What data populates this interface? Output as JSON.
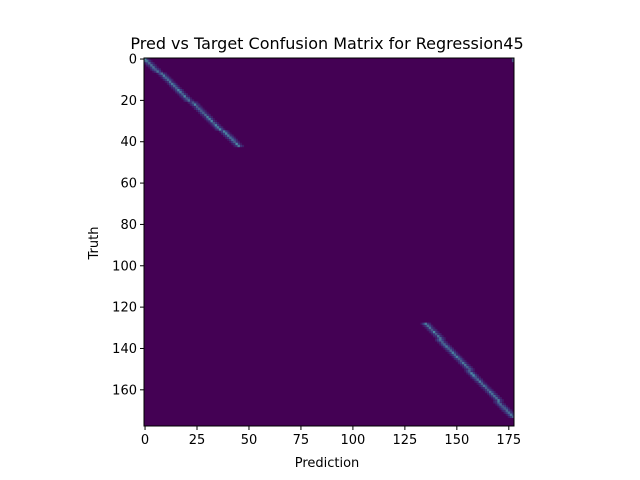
{
  "chart_data": {
    "type": "heatmap",
    "title": "Pred vs Target Confusion Matrix for Regression45",
    "xlabel": "Prediction",
    "ylabel": "Truth",
    "xlim": [
      0,
      178
    ],
    "ylim": [
      178,
      0
    ],
    "x_ticks": [
      0,
      25,
      50,
      75,
      100,
      125,
      150,
      175
    ],
    "y_ticks": [
      0,
      20,
      40,
      60,
      80,
      100,
      120,
      140,
      160
    ],
    "colormap": "viridis",
    "background_color": "#440154",
    "band_color": "#3b6ea8",
    "band_highlight_color": "#4fa3b0",
    "bands": [
      {
        "truth_start": 0,
        "truth_end": 42,
        "pred_start": 0,
        "pred_end": 45,
        "intensity": 0.45
      },
      {
        "truth_start": 128,
        "truth_end": 173,
        "pred_start": 135,
        "pred_end": 177,
        "intensity": 0.45
      }
    ],
    "corner_cells": [
      {
        "truth": 0,
        "pred": 177,
        "intensity": 0.5
      },
      {
        "truth": 0,
        "pred": 0,
        "intensity": 0.5
      }
    ]
  }
}
